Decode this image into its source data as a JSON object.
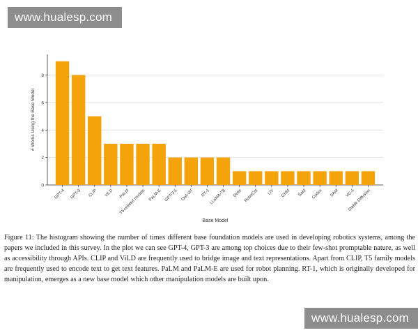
{
  "watermark_top": "www.hualesp.com",
  "watermark_bottom": "www.hualesp.com",
  "caption": {
    "label": "Figure 11:",
    "text": "The histogram showing the number of times different base foundation models are used in developing robotics systems, among the papers we included in this survey. In the plot we can see GPT-4, GPT-3 are among top choices due to their few-shot promptable nature, as well as accessibility through APIs. CLIP and ViLD are frequently used to bridge image and text representations. Apart from CLIP, T5 family models are frequently used to encode text to get text features. PaLM and PaLM-E are used for robot planning. RT-1, which is originally developed for manipulation, emerges as a new base model which other manipulation models are built upon."
  },
  "chart_data": {
    "type": "bar",
    "title": "",
    "xlabel": "Base Model",
    "ylabel": "# Works Using the Base Model",
    "categories": [
      "GPT-4",
      "GPT-3",
      "CLIP",
      "ViLD",
      "PaLM",
      "T5-related models",
      "PaLM-E",
      "GPT-3.5",
      "Owl-ViT",
      "RT-1",
      "LLaMA-7B",
      "Detic",
      "RoboCat",
      "LIV",
      "GNM",
      "SaM",
      "Codex",
      "SAM",
      "VC-1",
      "Stable Diffusion"
    ],
    "values": [
      9,
      8,
      5,
      3,
      3,
      3,
      3,
      2,
      2,
      2,
      2,
      1,
      1,
      1,
      1,
      1,
      1,
      1,
      1,
      1
    ],
    "yticks": [
      0,
      2,
      4,
      6,
      8
    ],
    "ylim": [
      0,
      9.5
    ],
    "grid": true,
    "bar_color": "#f5a30a"
  }
}
